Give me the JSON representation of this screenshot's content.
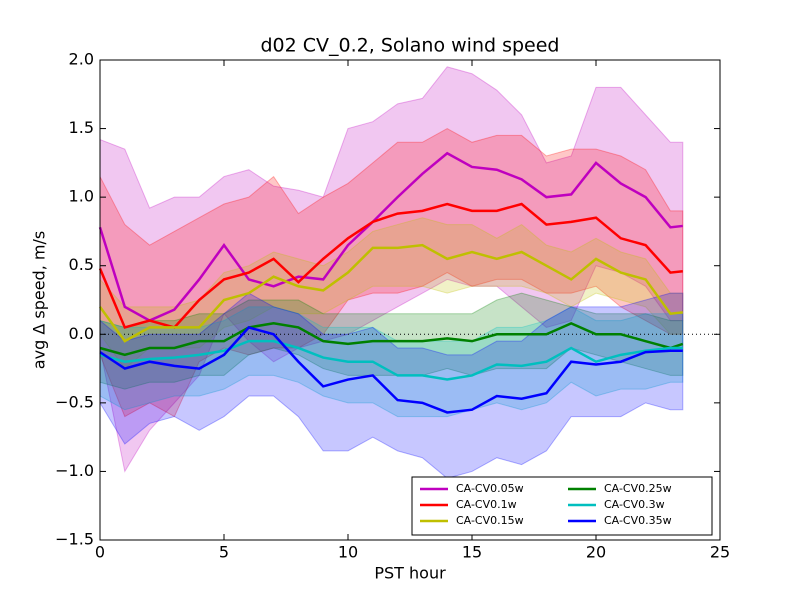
{
  "chart_data": {
    "type": "line_band",
    "title": "d02 CV_0.2, Solano wind speed",
    "x_label": "PST hour",
    "y_label": "avg Δ speed, m/s",
    "x": [
      0,
      1,
      2,
      3,
      4,
      5,
      6,
      7,
      8,
      9,
      10,
      11,
      12,
      13,
      14,
      15,
      16,
      17,
      18,
      19,
      20,
      21,
      22,
      23,
      23.5
    ],
    "xlim": [
      0,
      25
    ],
    "xticks": [
      0,
      5,
      10,
      15,
      20,
      25
    ],
    "ylim": [
      -1.5,
      2.0
    ],
    "yticks": [
      {
        "value": -1.5,
        "label": "−1.5"
      },
      {
        "value": -1.0,
        "label": "−1.0"
      },
      {
        "value": -0.5,
        "label": "−0.5"
      },
      {
        "value": 0,
        "label": "0.0"
      },
      {
        "value": 0.5,
        "label": "0.5"
      },
      {
        "value": 1.0,
        "label": "1.0"
      },
      {
        "value": 1.5,
        "label": "1.5"
      },
      {
        "value": 2.0,
        "label": "2.0"
      }
    ],
    "hline": 0,
    "legend_loc": "lower right",
    "series": [
      {
        "name": "CA-CV0.05w",
        "color": "#bf00bf",
        "values": [
          0.78,
          0.2,
          0.1,
          0.18,
          0.4,
          0.65,
          0.4,
          0.35,
          0.42,
          0.4,
          0.65,
          0.82,
          1.0,
          1.17,
          1.32,
          1.22,
          1.2,
          1.13,
          1.0,
          1.02,
          1.25,
          1.1,
          1.0,
          0.78,
          0.79
        ],
        "upper": [
          1.42,
          1.35,
          0.92,
          1.0,
          1.0,
          1.15,
          1.2,
          1.08,
          1.05,
          1.0,
          1.5,
          1.55,
          1.68,
          1.72,
          1.95,
          1.9,
          1.78,
          1.6,
          1.25,
          1.3,
          1.8,
          1.8,
          1.6,
          1.4,
          1.4
        ],
        "lower": [
          -0.1,
          -1.0,
          -0.7,
          -0.5,
          -0.3,
          0.15,
          -0.05,
          -0.2,
          -0.1,
          -0.05,
          0.0,
          0.1,
          0.2,
          0.3,
          0.4,
          0.35,
          0.35,
          0.2,
          0.05,
          0.1,
          0.5,
          0.45,
          0.35,
          0.1,
          0.1
        ]
      },
      {
        "name": "CA-CV0.1w",
        "color": "#ff0000",
        "values": [
          0.48,
          0.05,
          0.1,
          0.05,
          0.25,
          0.4,
          0.45,
          0.55,
          0.38,
          0.55,
          0.7,
          0.82,
          0.88,
          0.9,
          0.95,
          0.9,
          0.9,
          0.95,
          0.8,
          0.82,
          0.85,
          0.7,
          0.65,
          0.45,
          0.46
        ],
        "upper": [
          1.15,
          0.8,
          0.65,
          0.75,
          0.85,
          0.95,
          1.0,
          1.15,
          0.88,
          1.0,
          1.1,
          1.25,
          1.4,
          1.4,
          1.5,
          1.4,
          1.45,
          1.45,
          1.3,
          1.35,
          1.35,
          1.3,
          1.2,
          0.9,
          0.9
        ],
        "lower": [
          -0.15,
          -0.6,
          -0.5,
          -0.6,
          -0.2,
          -0.1,
          -0.15,
          -0.1,
          -0.1,
          0.0,
          0.25,
          0.3,
          0.3,
          0.35,
          0.45,
          0.35,
          0.4,
          0.4,
          0.3,
          0.3,
          0.35,
          0.2,
          0.1,
          0.0,
          0.0
        ]
      },
      {
        "name": "CA-CV0.15w",
        "color": "#bfbf00",
        "values": [
          0.2,
          -0.05,
          0.05,
          0.05,
          0.05,
          0.25,
          0.3,
          0.42,
          0.35,
          0.32,
          0.45,
          0.63,
          0.63,
          0.65,
          0.55,
          0.6,
          0.55,
          0.6,
          0.5,
          0.4,
          0.55,
          0.45,
          0.4,
          0.15,
          0.16
        ],
        "upper": [
          0.4,
          0.2,
          0.2,
          0.2,
          0.25,
          0.45,
          0.5,
          0.6,
          0.55,
          0.5,
          0.6,
          0.75,
          0.8,
          0.85,
          0.8,
          0.8,
          0.7,
          0.8,
          0.65,
          0.6,
          0.7,
          0.6,
          0.55,
          0.3,
          0.3
        ],
        "lower": [
          0.0,
          -0.25,
          -0.1,
          -0.1,
          -0.1,
          0.05,
          0.1,
          0.2,
          0.15,
          0.15,
          0.25,
          0.35,
          0.35,
          0.35,
          0.3,
          0.35,
          0.35,
          0.35,
          0.3,
          0.2,
          0.3,
          0.25,
          0.2,
          0.0,
          0.0
        ]
      },
      {
        "name": "CA-CV0.25w",
        "color": "#008000",
        "values": [
          -0.1,
          -0.15,
          -0.1,
          -0.1,
          -0.05,
          -0.05,
          0.05,
          0.08,
          0.05,
          -0.05,
          -0.07,
          -0.05,
          -0.05,
          -0.05,
          -0.03,
          -0.05,
          0.0,
          0.0,
          0.0,
          0.08,
          0.0,
          0.0,
          -0.05,
          -0.1,
          -0.07
        ],
        "upper": [
          0.1,
          0.05,
          0.1,
          0.1,
          0.15,
          0.15,
          0.25,
          0.25,
          0.25,
          0.15,
          0.15,
          0.15,
          0.15,
          0.15,
          0.15,
          0.15,
          0.25,
          0.3,
          0.25,
          0.2,
          0.15,
          0.15,
          0.15,
          0.1,
          0.1
        ],
        "lower": [
          -0.35,
          -0.4,
          -0.35,
          -0.35,
          -0.3,
          -0.3,
          -0.15,
          -0.1,
          -0.15,
          -0.25,
          -0.3,
          -0.3,
          -0.3,
          -0.3,
          -0.25,
          -0.3,
          -0.25,
          -0.25,
          -0.25,
          -0.1,
          -0.15,
          -0.2,
          -0.25,
          -0.3,
          -0.3
        ]
      },
      {
        "name": "CA-CV0.3w",
        "color": "#00bfbf",
        "values": [
          -0.15,
          -0.2,
          -0.18,
          -0.17,
          -0.15,
          -0.12,
          -0.05,
          -0.05,
          -0.1,
          -0.17,
          -0.2,
          -0.2,
          -0.3,
          -0.3,
          -0.33,
          -0.3,
          -0.22,
          -0.23,
          -0.2,
          -0.1,
          -0.2,
          -0.15,
          -0.12,
          -0.1,
          -0.1
        ],
        "upper": [
          0.1,
          0.05,
          0.05,
          0.05,
          0.05,
          0.1,
          0.2,
          0.2,
          0.15,
          0.05,
          0.05,
          0.05,
          -0.05,
          -0.05,
          -0.05,
          -0.05,
          0.05,
          0.05,
          0.1,
          0.2,
          0.1,
          0.1,
          0.15,
          0.15,
          0.15
        ],
        "lower": [
          -0.45,
          -0.55,
          -0.5,
          -0.45,
          -0.45,
          -0.4,
          -0.3,
          -0.3,
          -0.35,
          -0.45,
          -0.5,
          -0.5,
          -0.6,
          -0.6,
          -0.6,
          -0.55,
          -0.5,
          -0.55,
          -0.5,
          -0.35,
          -0.45,
          -0.4,
          -0.4,
          -0.35,
          -0.35
        ]
      },
      {
        "name": "CA-CV0.35w",
        "color": "#0000ff",
        "values": [
          -0.13,
          -0.25,
          -0.2,
          -0.23,
          -0.25,
          -0.15,
          0.05,
          0.0,
          -0.2,
          -0.38,
          -0.33,
          -0.3,
          -0.48,
          -0.5,
          -0.57,
          -0.55,
          -0.45,
          -0.47,
          -0.43,
          -0.2,
          -0.22,
          -0.2,
          -0.13,
          -0.12,
          -0.12
        ],
        "upper": [
          0.1,
          -0.05,
          0.0,
          0.0,
          0.0,
          0.15,
          0.3,
          0.2,
          0.15,
          0.0,
          0.0,
          0.05,
          -0.1,
          -0.1,
          -0.15,
          -0.15,
          -0.05,
          -0.05,
          0.1,
          0.2,
          0.2,
          0.2,
          0.25,
          0.3,
          0.3
        ],
        "lower": [
          -0.5,
          -0.8,
          -0.65,
          -0.6,
          -0.7,
          -0.6,
          -0.45,
          -0.45,
          -0.6,
          -0.85,
          -0.85,
          -0.75,
          -0.85,
          -0.9,
          -1.05,
          -1.0,
          -0.9,
          -0.95,
          -0.85,
          -0.6,
          -0.6,
          -0.6,
          -0.5,
          -0.55,
          -0.55
        ]
      }
    ]
  }
}
